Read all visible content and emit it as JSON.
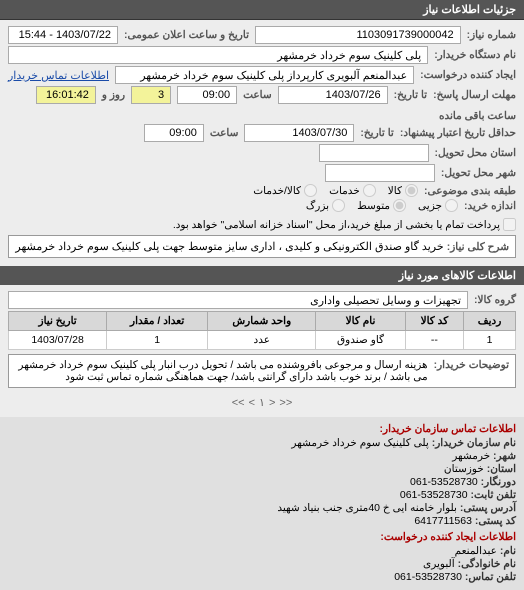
{
  "headerTitle": "جزئیات اطلاعات نیاز",
  "top": {
    "numberLabel": "شماره نیاز:",
    "number": "1103091739000042",
    "announceLabel": "تاریخ و ساعت اعلان عمومی:",
    "announce": "1403/07/22 - 15:44",
    "buyerDeviceLabel": "نام دستگاه خریدار:",
    "buyerDevice": "پلی کلینیک سوم خرداد خرمشهر",
    "creatorLabel": "ایجاد کننده درخواست:",
    "creator": "عبدالمنعم آلبویری کارپرداز پلی کلینیک سوم خرداد خرمشهر",
    "buyerContactLink": "اطلاعات تماس خریدار",
    "deadlineLabel": "مهلت ارسال پاسخ:",
    "deadlineTa": "تا تاریخ:",
    "deadlineDate": "1403/07/26",
    "deadlineTimeLabel": "ساعت",
    "deadlineTime": "09:00",
    "daysLabel": "روز و",
    "days": "3",
    "remainLabel": "ساعت باقی مانده",
    "remain": "16:01:42",
    "minValidLabel": "حداقل تاریخ اعتبار پیشنهاد:",
    "minValidTa": "تا تاریخ:",
    "minValidDate": "1403/07/30",
    "minValidTimeLabel": "ساعت",
    "minValidTime": "09:00",
    "provinceLabel": "استان محل تحویل:",
    "province": "",
    "cityLabel": "شهر محل تحویل:",
    "city": "",
    "subjectClassLabel": "طبقه بندی موضوعی:",
    "subjectOpts": {
      "kala": "کالا",
      "khadamat": "خدمات",
      "both": "کالا/خدمات"
    },
    "sizeLabel": "اندازه خرید:",
    "sizeOpts": {
      "small": "جزیی",
      "med": "متوسط",
      "large": "بزرگ"
    },
    "payNote": "پرداخت تمام یا بخشی از مبلغ خرید،از محل \"اسناد خزانه اسلامی\" خواهد بود.",
    "descLabel": "شرح کلی نیاز:",
    "desc": "خرید گاو صندق الکترونیکی و کلیدی ، اداری سایز متوسط جهت پلی کلینیک سوم خرداد خرمشهر"
  },
  "itemsHeader": "اطلاعات کالاهای مورد نیاز",
  "groupLabel": "گروه کالا:",
  "group": "تجهیزات و وسایل تحصیلی واداری",
  "tbl": {
    "cols": [
      "ردیف",
      "کد کالا",
      "نام کالا",
      "واحد شمارش",
      "تعداد / مقدار",
      "تاریخ نیاز"
    ],
    "rows": [
      [
        "1",
        "--",
        "گاو صندوق",
        "عدد",
        "1",
        "1403/07/28"
      ]
    ]
  },
  "note": {
    "label": "توضیحات خریدار:",
    "text": "هزینه ارسال و مرجوعی بافروشنده می باشد / تحویل درب انبار پلی کلینیک سوم خرداد خرمشهر می باشد / برند خوب باشد دارای گرانتی باشد/ جهت هماهنگی شماره تماس ثبت شود"
  },
  "pager": {
    "left": "<<",
    "l1": "<",
    "page": "۱",
    "r1": ">",
    "right": ">>"
  },
  "contact": {
    "hdr": "اطلاعات تماس سازمان خریدار:",
    "rows": [
      {
        "k": "نام سازمان خریدار:",
        "v": "پلی کلینیک سوم خرداد خرمشهر"
      },
      {
        "k": "شهر:",
        "v": "خرمشهر"
      },
      {
        "k": "استان:",
        "v": "خوزستان"
      },
      {
        "k": "دورنگار:",
        "v": "53528730-061"
      },
      {
        "k": "تلفن ثابت:",
        "v": "53528730-061"
      },
      {
        "k": "آدرس پستی:",
        "v": "بلوار خامنه ایی خ 40متری جنب بنیاد شهید"
      },
      {
        "k": "کد پستی:",
        "v": "6417711563"
      }
    ],
    "hdr2": "اطلاعات ایجاد کننده درخواست:",
    "rows2": [
      {
        "k": "نام:",
        "v": "عبدالمنعم"
      },
      {
        "k": "نام خانوادگی:",
        "v": "آلبویری"
      },
      {
        "k": "تلفن تماس:",
        "v": "53528730-061"
      }
    ]
  }
}
